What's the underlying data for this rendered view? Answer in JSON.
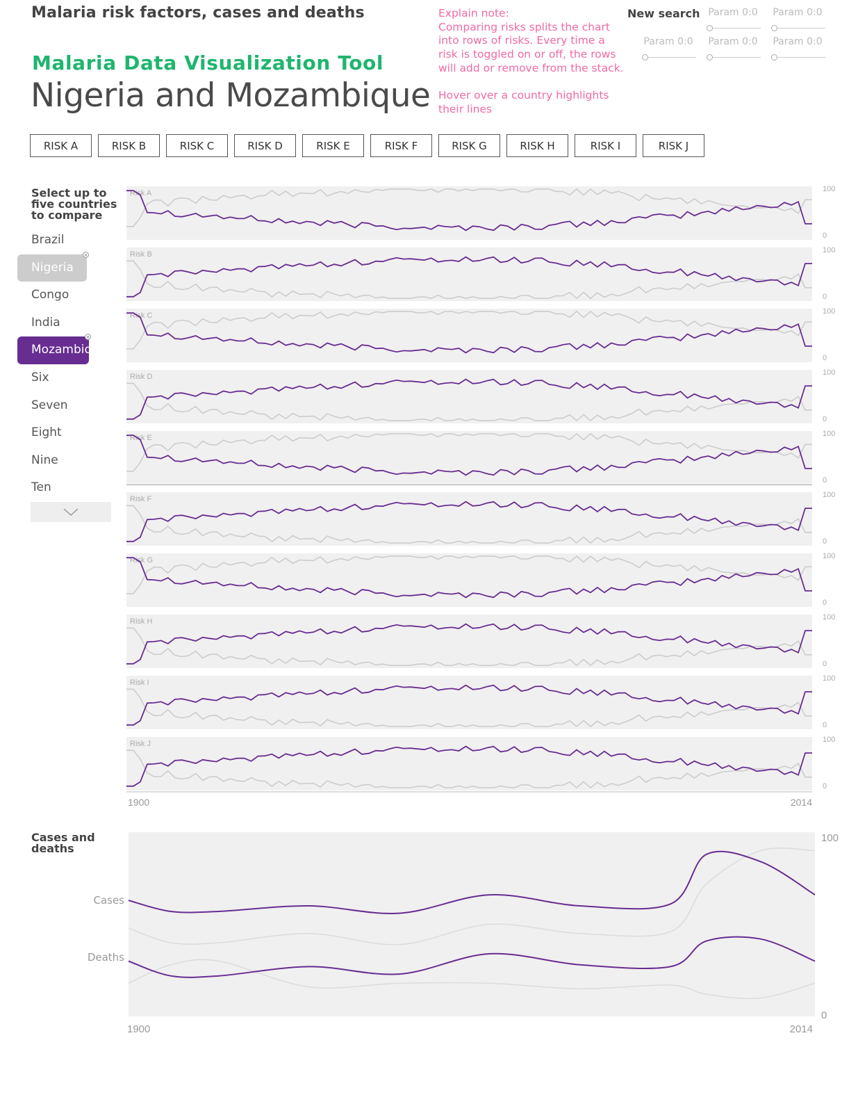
{
  "header": {
    "top_title": "Malaria risk factors, cases and deaths",
    "app_title": "Malaria Data Visualization Tool",
    "page_title": "Nigeria and Mozambique"
  },
  "explain_note": {
    "label": "Explain note:",
    "text1": "Comparing risks splits the chart into rows of risks. Every time a risk is toggled on or off, the rows will add or remove from the stack.",
    "text2": "Hover over a country highlights their lines"
  },
  "search": {
    "new_search_label": "New search",
    "params": [
      "Param 0:0",
      "Param 0:0",
      "Param 0:0",
      "Param 0:0",
      "Param 0:0",
      "Param 0: 0"
    ]
  },
  "risk_buttons": [
    "RISK A",
    "RISK B",
    "RISK C",
    "RISK D",
    "RISK E",
    "RISK F",
    "RISK G",
    "RISK H",
    "RISK I",
    "RISK J"
  ],
  "country_panel": {
    "heading": "Select up to five countries to compare",
    "countries": [
      {
        "name": "Brazil",
        "state": "none"
      },
      {
        "name": "Nigeria",
        "state": "grey"
      },
      {
        "name": "Congo",
        "state": "none"
      },
      {
        "name": "India",
        "state": "none"
      },
      {
        "name": "Mozambique",
        "state": "purple"
      },
      {
        "name": "Six",
        "state": "none"
      },
      {
        "name": "Seven",
        "state": "none"
      },
      {
        "name": "Eight",
        "state": "none"
      },
      {
        "name": "Nine",
        "state": "none"
      },
      {
        "name": "Ten",
        "state": "none"
      }
    ],
    "remove_glyph": "×"
  },
  "colors": {
    "highlight": "#672d91",
    "secondary": "#cccccc",
    "panel_bg": "#f0f0f0",
    "accent_green": "#1fb56f",
    "note_pink": "#f06aa5"
  },
  "chart_data": [
    {
      "type": "line",
      "rows": [
        "Risk A",
        "Risk B",
        "Risk C",
        "Risk D",
        "Risk E",
        "Risk F",
        "Risk G",
        "Risk H",
        "Risk I",
        "Risk J"
      ],
      "x_range": [
        1900,
        2014
      ],
      "x_tick_labels": [
        "1900",
        "2014"
      ],
      "ylim": [
        0,
        100
      ],
      "y_tick_labels": [
        "100",
        "0"
      ],
      "series": [
        {
          "highlighted": true
        },
        {
          "highlighted": false
        }
      ]
    },
    {
      "type": "line",
      "title": "Cases and deaths",
      "rows": [
        "Cases",
        "Deaths"
      ],
      "x_range": [
        1900,
        2014
      ],
      "x_tick_labels": [
        "1900",
        "2014"
      ],
      "ylim": [
        0,
        100
      ],
      "y_tick_labels": [
        "100",
        "0"
      ],
      "cases": {
        "x": [
          1900,
          1907,
          1915,
          1930,
          1945,
          1960,
          1975,
          1990,
          1996,
          2005,
          2014
        ],
        "highlighted": [
          63,
          57,
          57,
          60,
          56,
          66,
          60,
          61,
          88,
          84,
          66
        ],
        "secondary": [
          48,
          40,
          40,
          45,
          39,
          50,
          45,
          46,
          72,
          90,
          90
        ]
      },
      "deaths": {
        "x": [
          1900,
          1907,
          1915,
          1930,
          1945,
          1960,
          1975,
          1990,
          1996,
          2005,
          2014
        ],
        "highlighted": [
          30,
          22,
          22,
          27,
          23,
          34,
          28,
          27,
          41,
          42,
          30
        ],
        "secondary": [
          18,
          28,
          30,
          16,
          18,
          18,
          15,
          17,
          12,
          10,
          18
        ]
      }
    }
  ]
}
